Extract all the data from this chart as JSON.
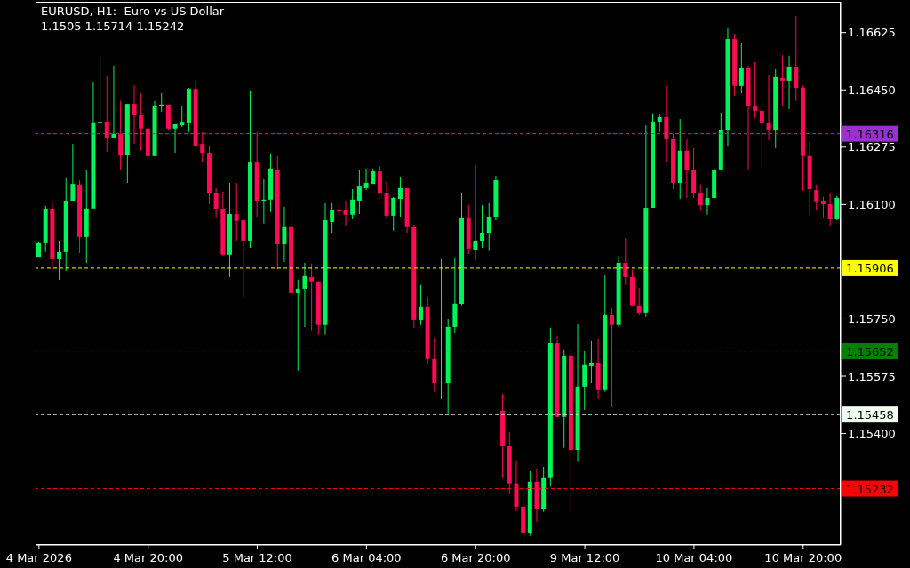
{
  "chart_data": {
    "type": "candlestick",
    "title": "EURUSD, H1:  Euro vs US Dollar",
    "subtitle": "1.1505 1.15714 1.15242",
    "categories": [
      "4 Mar 2026",
      null,
      null,
      null,
      null,
      null,
      null,
      null,
      null,
      null,
      null,
      null,
      null,
      null,
      null,
      null,
      "4 Mar 20:00",
      null,
      null,
      null,
      null,
      null,
      null,
      null,
      null,
      null,
      null,
      null,
      null,
      null,
      null,
      null,
      "5 Mar 12:00",
      null,
      null,
      null,
      null,
      null,
      null,
      null,
      null,
      null,
      null,
      null,
      null,
      null,
      null,
      null,
      "6 Mar 04:00",
      null,
      null,
      null,
      null,
      null,
      null,
      null,
      null,
      null,
      null,
      null,
      null,
      null,
      null,
      null,
      "6 Mar 20:00",
      null,
      null,
      null,
      null,
      null,
      null,
      null,
      null,
      null,
      null,
      null,
      null,
      null,
      null,
      null,
      "9 Mar 12:00",
      null,
      null,
      null,
      null,
      null,
      null,
      null,
      null,
      null,
      null,
      null,
      null,
      null,
      null,
      null,
      "10 Mar 04:00",
      null,
      null,
      null,
      null,
      null,
      null,
      null,
      null,
      null,
      null,
      null,
      null,
      null,
      null,
      null,
      "10 Mar 20:00",
      null,
      null,
      null,
      null,
      null
    ],
    "ohlc": [
      [
        1.15938,
        1.15985,
        1.15938,
        1.15982
      ],
      [
        1.15982,
        1.16096,
        1.15955,
        1.16085
      ],
      [
        1.16085,
        1.16107,
        1.15903,
        1.15933
      ],
      [
        1.15933,
        1.1599,
        1.15871,
        1.15955
      ],
      [
        1.15955,
        1.1618,
        1.15898,
        1.16109
      ],
      [
        1.16109,
        1.16285,
        1.16109,
        1.16163
      ],
      [
        1.16161,
        1.16174,
        1.15952,
        1.16001
      ],
      [
        1.16001,
        1.16204,
        1.15922,
        1.16088
      ],
      [
        1.16088,
        1.16475,
        1.16088,
        1.16348
      ],
      [
        1.16348,
        1.16551,
        1.1631,
        1.16353
      ],
      [
        1.16353,
        1.16491,
        1.16261,
        1.16304
      ],
      [
        1.16304,
        1.16524,
        1.16302,
        1.16315
      ],
      [
        1.16315,
        1.16416,
        1.16207,
        1.1625
      ],
      [
        1.1625,
        1.16407,
        1.16166,
        1.16407
      ],
      [
        1.16407,
        1.16464,
        1.16285,
        1.16372
      ],
      [
        1.16372,
        1.1644,
        1.16264,
        1.16332
      ],
      [
        1.16332,
        1.1634,
        1.16234,
        1.16248
      ],
      [
        1.16248,
        1.16416,
        1.16248,
        1.16402
      ],
      [
        1.16399,
        1.1644,
        1.16383,
        1.16405
      ],
      [
        1.16405,
        1.16405,
        1.16326,
        1.16332
      ],
      [
        1.16332,
        1.16345,
        1.16258,
        1.16345
      ],
      [
        1.16342,
        1.16399,
        1.16337,
        1.1635
      ],
      [
        1.16348,
        1.16456,
        1.16321,
        1.16453
      ],
      [
        1.16453,
        1.16478,
        1.16275,
        1.1628
      ],
      [
        1.16285,
        1.16321,
        1.16228,
        1.16258
      ],
      [
        1.16258,
        1.1628,
        1.16101,
        1.16134
      ],
      [
        1.16134,
        1.1615,
        1.16058,
        1.16085
      ],
      [
        1.16085,
        1.16139,
        1.15944,
        1.15947
      ],
      [
        1.15947,
        1.16166,
        1.15879,
        1.16071
      ],
      [
        1.16071,
        1.16166,
        1.1599,
        1.1605
      ],
      [
        1.16052,
        1.16052,
        1.15817,
        1.1599
      ],
      [
        1.1599,
        1.16448,
        1.15966,
        1.16228
      ],
      [
        1.16228,
        1.16321,
        1.16063,
        1.16109
      ],
      [
        1.16109,
        1.16177,
        1.16042,
        1.16115
      ],
      [
        1.16115,
        1.16253,
        1.16077,
        1.1621
      ],
      [
        1.16207,
        1.16248,
        1.15901,
        1.15979
      ],
      [
        1.15979,
        1.16093,
        1.15925,
        1.16031
      ],
      [
        1.16031,
        1.16096,
        1.15695,
        1.1583
      ],
      [
        1.1583,
        1.15871,
        1.15592,
        1.15841
      ],
      [
        1.15841,
        1.15922,
        1.15727,
        1.15882
      ],
      [
        1.15879,
        1.1592,
        1.15714,
        1.15863
      ],
      [
        1.15863,
        1.15863,
        1.15703,
        1.15733
      ],
      [
        1.15733,
        1.16104,
        1.15703,
        1.16052
      ],
      [
        1.16047,
        1.16104,
        1.16014,
        1.16082
      ],
      [
        1.16082,
        1.16104,
        1.16063,
        1.16079
      ],
      [
        1.16082,
        1.16109,
        1.16033,
        1.16069
      ],
      [
        1.16069,
        1.16147,
        1.16055,
        1.16115
      ],
      [
        1.16112,
        1.16207,
        1.16071,
        1.16155
      ],
      [
        1.1615,
        1.1621,
        1.16144,
        1.16166
      ],
      [
        1.16163,
        1.1621,
        1.16163,
        1.16201
      ],
      [
        1.16201,
        1.16215,
        1.16131,
        1.16136
      ],
      [
        1.16136,
        1.16169,
        1.16058,
        1.16066
      ],
      [
        1.16066,
        1.16123,
        1.1602,
        1.1612
      ],
      [
        1.16117,
        1.16185,
        1.16063,
        1.1615
      ],
      [
        1.1615,
        1.1615,
        1.16014,
        1.16031
      ],
      [
        1.16031,
        1.16036,
        1.15722,
        1.15746
      ],
      [
        1.15746,
        1.15855,
        1.15733,
        1.15787
      ],
      [
        1.15787,
        1.15817,
        1.15613,
        1.1563
      ],
      [
        1.1563,
        1.15692,
        1.15527,
        1.15554
      ],
      [
        1.15554,
        1.15933,
        1.15505,
        1.15556
      ],
      [
        1.15554,
        1.15749,
        1.15462,
        1.15727
      ],
      [
        1.15727,
        1.15936,
        1.15708,
        1.15798
      ],
      [
        1.15795,
        1.16136,
        1.1579,
        1.16058
      ],
      [
        1.16058,
        1.16098,
        1.15949,
        1.15963
      ],
      [
        1.1596,
        1.1622,
        1.1593,
        1.1599
      ],
      [
        1.15987,
        1.16098,
        1.15968,
        1.16014
      ],
      [
        1.16014,
        1.16104,
        1.15958,
        1.16063
      ],
      [
        1.16063,
        1.16188,
        1.16052,
        1.16174
      ],
      [
        1.1547,
        1.15521,
        1.15264,
        1.15361
      ],
      [
        1.15361,
        1.15405,
        1.15215,
        1.15248
      ],
      [
        1.15248,
        1.15318,
        1.15163,
        1.15177
      ],
      [
        1.15177,
        1.15242,
        1.15074,
        1.15096
      ],
      [
        1.15096,
        1.15285,
        1.15088,
        1.15253
      ],
      [
        1.15253,
        1.15294,
        1.15131,
        1.15169
      ],
      [
        1.15169,
        1.15299,
        1.15161,
        1.15264
      ],
      [
        1.15264,
        1.15722,
        1.15239,
        1.15678
      ],
      [
        1.15678,
        1.15697,
        1.15451,
        1.15451
      ],
      [
        1.15451,
        1.15657,
        1.15356,
        1.15638
      ],
      [
        1.15638,
        1.15657,
        1.15158,
        1.1535
      ],
      [
        1.1535,
        1.15735,
        1.15313,
        1.15543
      ],
      [
        1.15543,
        1.15654,
        1.15472,
        1.15611
      ],
      [
        1.15608,
        1.15684,
        1.15554,
        1.15616
      ],
      [
        1.15616,
        1.15689,
        1.15505,
        1.15535
      ],
      [
        1.15535,
        1.15884,
        1.15527,
        1.15762
      ],
      [
        1.15762,
        1.15784,
        1.1548,
        1.15733
      ],
      [
        1.15733,
        1.15944,
        1.15727,
        1.15922
      ],
      [
        1.15922,
        1.15998,
        1.15855,
        1.15879
      ],
      [
        1.15879,
        1.15901,
        1.1579,
        1.1579
      ],
      [
        1.1579,
        1.15846,
        1.15762,
        1.15768
      ],
      [
        1.15768,
        1.16342,
        1.15757,
        1.1609
      ],
      [
        1.1609,
        1.16378,
        1.1609,
        1.16353
      ],
      [
        1.16353,
        1.16375,
        1.16321,
        1.16367
      ],
      [
        1.16367,
        1.16462,
        1.16231,
        1.16299
      ],
      [
        1.16299,
        1.16315,
        1.16147,
        1.16166
      ],
      [
        1.16166,
        1.16361,
        1.16117,
        1.16264
      ],
      [
        1.16264,
        1.16299,
        1.1612,
        1.16204
      ],
      [
        1.16204,
        1.16272,
        1.1612,
        1.16134
      ],
      [
        1.16134,
        1.16161,
        1.16082,
        1.16098
      ],
      [
        1.16098,
        1.1615,
        1.16069,
        1.1612
      ],
      [
        1.1612,
        1.16207,
        1.16117,
        1.16207
      ],
      [
        1.16207,
        1.1638,
        1.16207,
        1.16326
      ],
      [
        1.16326,
        1.16638,
        1.1628,
        1.16605
      ],
      [
        1.16605,
        1.16621,
        1.16432,
        1.16462
      ],
      [
        1.16462,
        1.16592,
        1.1644,
        1.16516
      ],
      [
        1.16516,
        1.16524,
        1.16207,
        1.16399
      ],
      [
        1.16399,
        1.16535,
        1.16364,
        1.16386
      ],
      [
        1.16386,
        1.1641,
        1.16215,
        1.16348
      ],
      [
        1.16348,
        1.16494,
        1.16296,
        1.16326
      ],
      [
        1.16326,
        1.16513,
        1.16272,
        1.16489
      ],
      [
        1.16486,
        1.16556,
        1.16399,
        1.16478
      ],
      [
        1.16478,
        1.16554,
        1.16391,
        1.16521
      ],
      [
        1.16521,
        1.16676,
        1.16416,
        1.16456
      ],
      [
        1.16456,
        1.16464,
        1.16142,
        1.16248
      ],
      [
        1.16248,
        1.16291,
        1.16069,
        1.16147
      ],
      [
        1.16144,
        1.16161,
        1.16082,
        1.16107
      ],
      [
        1.16109,
        1.16123,
        1.16058,
        1.16101
      ],
      [
        1.16101,
        1.16136,
        1.16033,
        1.16055
      ],
      [
        1.16055,
        1.16126,
        1.16052,
        1.1612
      ]
    ],
    "colors": [
      "#00f45a",
      "#00f45a",
      "#ff0a54",
      "#00f45a",
      "#00f45a",
      "#00f45a",
      "#ff0a54",
      "#00f45a",
      "#00f45a",
      "#00f45a",
      "#ff0a54",
      "#00f45a",
      "#ff0a54",
      "#00f45a",
      "#ff0a54",
      "#ff0a54",
      "#ff0a54",
      "#00f45a",
      "#00f45a",
      "#ff0a54",
      "#00f45a",
      "#00f45a",
      "#00f45a",
      "#ff0a54",
      "#ff0a54",
      "#ff0a54",
      "#ff0a54",
      "#ff0a54",
      "#00f45a",
      "#ff0a54",
      "#ff0a54",
      "#00f45a",
      "#ff0a54",
      "#00f45a",
      "#00f45a",
      "#ff0a54",
      "#00f45a",
      "#ff0a54",
      "#00f45a",
      "#00f45a",
      "#ff0a54",
      "#ff0a54",
      "#00f45a",
      "#00f45a",
      "#ff0a54",
      "#ff0a54",
      "#00f45a",
      "#00f45a",
      "#00f45a",
      "#00f45a",
      "#ff0a54",
      "#ff0a54",
      "#00f45a",
      "#00f45a",
      "#ff0a54",
      "#ff0a54",
      "#00f45a",
      "#ff0a54",
      "#ff0a54",
      "#00f45a",
      "#00f45a",
      "#00f45a",
      "#00f45a",
      "#ff0a54",
      "#00f45a",
      "#00f45a",
      "#00f45a",
      "#00f45a",
      "#ff0a54",
      "#ff0a54",
      "#ff0a54",
      "#ff0a54",
      "#00f45a",
      "#ff0a54",
      "#00f45a",
      "#00f45a",
      "#ff0a54",
      "#00f45a",
      "#ff0a54",
      "#00f45a",
      "#00f45a",
      "#00f45a",
      "#ff0a54",
      "#00f45a",
      "#ff0a54",
      "#00f45a",
      "#ff0a54",
      "#ff0a54",
      "#ff0a54",
      "#00f45a",
      "#00f45a",
      "#00f45a",
      "#ff0a54",
      "#ff0a54",
      "#00f45a",
      "#ff0a54",
      "#ff0a54",
      "#ff0a54",
      "#00f45a",
      "#00f45a",
      "#00f45a",
      "#00f45a",
      "#ff0a54",
      "#00f45a",
      "#ff0a54",
      "#ff0a54",
      "#ff0a54",
      "#ff0a54",
      "#00f45a",
      "#ff0a54",
      "#00f45a",
      "#ff0a54",
      "#ff0a54",
      "#ff0a54",
      "#ff0a54",
      "#ff0a54",
      "#ff0a54",
      "#00f45a"
    ],
    "ylim": [
      1.1506,
      1.16719
    ],
    "yticks": [
      1.16625,
      {
        "value": 1.1645,
        "label": "1.16450"
      },
      1.16275,
      {
        "value": 1.161,
        "label": "1.16100"
      },
      {
        "value": 1.1575,
        "label": "1.15750"
      },
      1.15575,
      {
        "value": 1.154,
        "label": "1.15400"
      }
    ],
    "ref_lines": [
      {
        "axis": "y",
        "value": 1.16316,
        "label": "1.16316",
        "color": "#9932cc",
        "line_style": "dashed"
      },
      {
        "axis": "y",
        "value": 1.15906,
        "label": "1.15906",
        "color": "#ffff00",
        "line_style": "dashed"
      },
      {
        "axis": "y",
        "value": 1.15652,
        "label": "1.15652",
        "color": "#008000",
        "line_style": "dashed"
      },
      {
        "axis": "y",
        "value": 1.15458,
        "label": "1.15458",
        "color": "#f0fff0",
        "line_style": "dashed"
      },
      {
        "axis": "y",
        "value": 1.15232,
        "label": "1.15232",
        "color": "#ff0000",
        "line_style": "dashed"
      }
    ]
  }
}
